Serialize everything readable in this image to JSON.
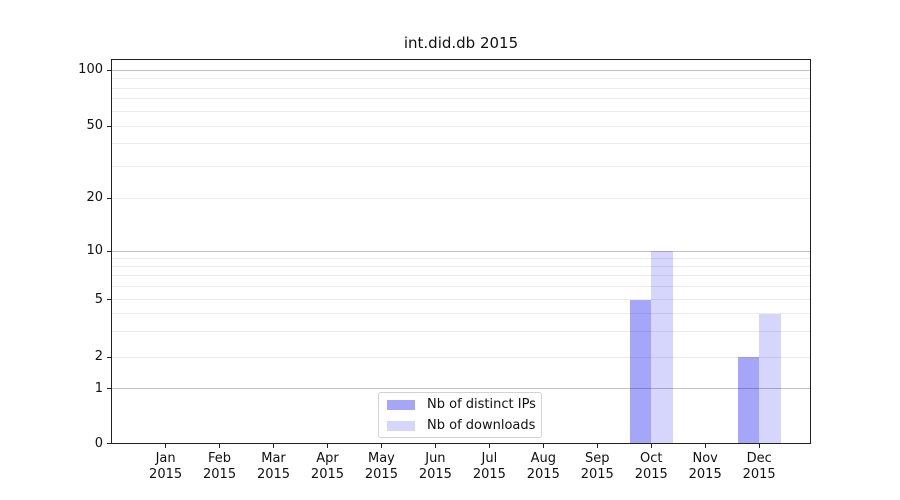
{
  "chart_data": {
    "type": "bar",
    "title": "int.did.db 2015",
    "categories": [
      "Jan",
      "Feb",
      "Mar",
      "Apr",
      "May",
      "Jun",
      "Jul",
      "Aug",
      "Sep",
      "Oct",
      "Nov",
      "Dec"
    ],
    "category_year": "2015",
    "series": [
      {
        "name": "Nb of distinct IPs",
        "color": "rgba(0,0,238,0.35)",
        "values": [
          0,
          0,
          0,
          0,
          0,
          0,
          0,
          0,
          0,
          5,
          0,
          2
        ]
      },
      {
        "name": "Nb of downloads",
        "color": "rgba(0,0,238,0.16)",
        "values": [
          0,
          0,
          0,
          0,
          0,
          0,
          0,
          0,
          0,
          10,
          0,
          4
        ]
      }
    ],
    "xlabel": "",
    "ylabel": "",
    "y_axis": {
      "scale": "log above 1, linear between 0 and 1 (symlog)",
      "tick_values": [
        0,
        1,
        2,
        5,
        10,
        20,
        50,
        100
      ],
      "major_gridlines": [
        1,
        10,
        100
      ],
      "minor_gridlines": [
        2,
        3,
        4,
        5,
        6,
        7,
        8,
        9,
        20,
        30,
        40,
        50,
        60,
        70,
        80,
        90
      ],
      "ylim": [
        0,
        115
      ]
    },
    "grid": "horizontal, major and minor, on",
    "legend": {
      "position": "inside bottom-center",
      "entries": [
        "Nb of distinct IPs",
        "Nb of downloads"
      ]
    },
    "colors": {
      "bar_distinct_ips_rendered": "#a8a8f8",
      "bar_downloads_rendered": "#d9d9fb",
      "axis_spine": "#222222",
      "major_grid": "#c3c3c3",
      "minor_grid": "#ebebeb",
      "text": "#111111"
    }
  }
}
